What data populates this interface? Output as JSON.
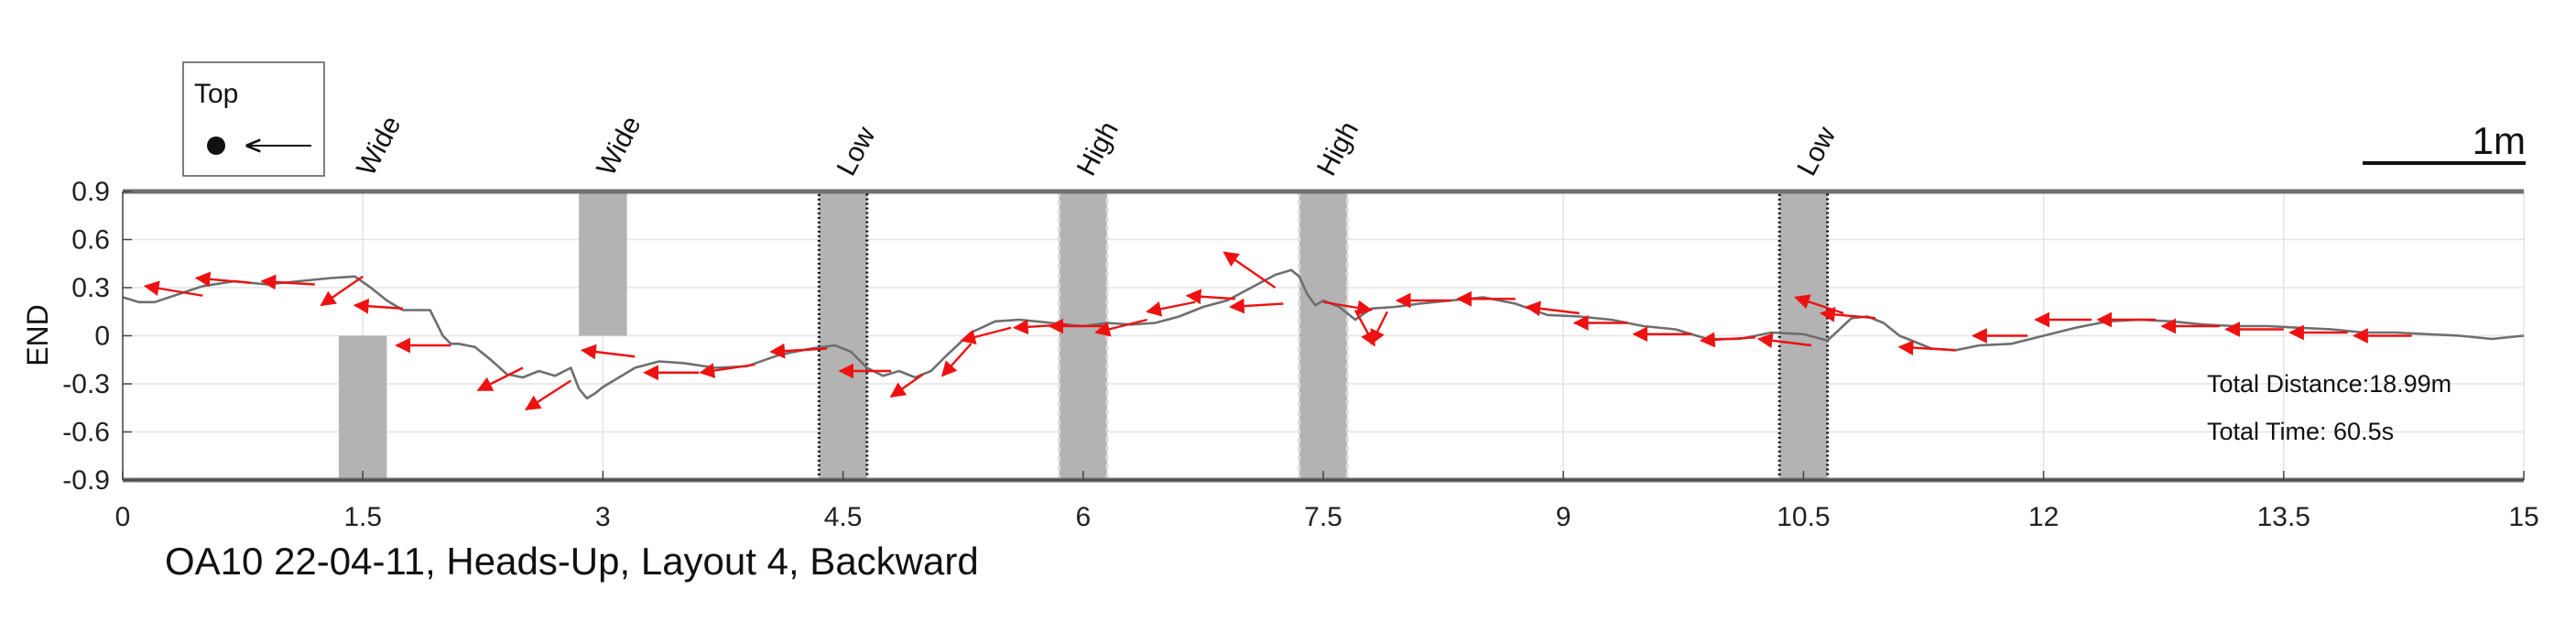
{
  "chart_data": {
    "type": "line",
    "title": "OA10 22-04-11, Heads-Up, Layout 4, Backward",
    "xlabel": "",
    "ylabel": "END",
    "xlim": [
      0,
      15
    ],
    "ylim": [
      -0.9,
      0.9
    ],
    "x_ticks": [
      "0",
      "1.5",
      "3",
      "4.5",
      "6",
      "7.5",
      "9",
      "10.5",
      "12",
      "13.5",
      "15"
    ],
    "y_ticks": [
      "0.9",
      "0.6",
      "0.3",
      "0",
      "-0.3",
      "-0.6",
      "-0.9"
    ],
    "x_tick_values": [
      0,
      1.5,
      3,
      4.5,
      6,
      7.5,
      9,
      10.5,
      12,
      13.5,
      15
    ],
    "y_tick_values": [
      0.9,
      0.6,
      0.3,
      0,
      -0.3,
      -0.6,
      -0.9
    ],
    "grid": true,
    "trajectory": {
      "color": "#6e6e6e",
      "x": [
        0,
        0.1,
        0.2,
        0.35,
        0.5,
        0.7,
        0.9,
        1.1,
        1.3,
        1.45,
        1.55,
        1.65,
        1.75,
        1.85,
        1.92,
        2.0,
        2.05,
        2.1,
        2.2,
        2.3,
        2.4,
        2.5,
        2.6,
        2.7,
        2.8,
        2.85,
        2.9,
        2.95,
        3.0,
        3.1,
        3.2,
        3.35,
        3.5,
        3.7,
        3.9,
        4.1,
        4.3,
        4.45,
        4.55,
        4.65,
        4.75,
        4.85,
        4.95,
        5.05,
        5.15,
        5.3,
        5.45,
        5.6,
        5.8,
        6.0,
        6.15,
        6.3,
        6.45,
        6.6,
        6.75,
        6.9,
        7.05,
        7.2,
        7.3,
        7.35,
        7.4,
        7.45,
        7.5,
        7.6,
        7.7,
        7.8,
        7.95,
        8.1,
        8.3,
        8.5,
        8.7,
        8.9,
        9.1,
        9.3,
        9.5,
        9.7,
        9.9,
        10.1,
        10.3,
        10.5,
        10.65,
        10.8,
        10.9,
        11.0,
        11.1,
        11.2,
        11.3,
        11.45,
        11.6,
        11.8,
        12.0,
        12.2,
        12.4,
        12.6,
        12.8,
        13.0,
        13.2,
        13.4,
        13.6,
        13.8,
        14.0,
        14.2,
        14.4,
        14.6,
        14.8,
        15.0
      ],
      "y": [
        0.24,
        0.21,
        0.21,
        0.26,
        0.31,
        0.34,
        0.32,
        0.34,
        0.36,
        0.37,
        0.3,
        0.22,
        0.16,
        0.16,
        0.16,
        0.0,
        -0.05,
        -0.05,
        -0.07,
        -0.15,
        -0.24,
        -0.26,
        -0.22,
        -0.25,
        -0.2,
        -0.33,
        -0.39,
        -0.36,
        -0.32,
        -0.26,
        -0.2,
        -0.16,
        -0.17,
        -0.2,
        -0.19,
        -0.12,
        -0.08,
        -0.06,
        -0.1,
        -0.2,
        -0.25,
        -0.22,
        -0.26,
        -0.22,
        -0.12,
        0.02,
        0.09,
        0.1,
        0.08,
        0.06,
        0.08,
        0.07,
        0.08,
        0.12,
        0.18,
        0.22,
        0.3,
        0.38,
        0.41,
        0.37,
        0.26,
        0.19,
        0.22,
        0.18,
        0.1,
        0.17,
        0.18,
        0.2,
        0.22,
        0.24,
        0.2,
        0.13,
        0.12,
        0.1,
        0.06,
        0.04,
        -0.02,
        -0.02,
        0.02,
        0.01,
        -0.03,
        0.11,
        0.12,
        0.08,
        0.0,
        -0.04,
        -0.08,
        -0.09,
        -0.06,
        -0.05,
        0.0,
        0.05,
        0.09,
        0.1,
        0.09,
        0.07,
        0.06,
        0.06,
        0.05,
        0.04,
        0.02,
        0.02,
        0.01,
        0.0,
        -0.02,
        0.0
      ]
    },
    "heading_arrows": {
      "color": "#ee1111",
      "x": [
        0.5,
        0.8,
        1.2,
        1.5,
        1.75,
        2.05,
        2.5,
        2.8,
        3.2,
        3.6,
        3.95,
        4.4,
        4.8,
        5.0,
        5.3,
        5.55,
        5.9,
        6.15,
        6.4,
        6.7,
        6.95,
        7.2,
        7.25,
        7.5,
        7.7,
        7.9,
        8.3,
        8.7,
        9.1,
        9.4,
        9.8,
        10.2,
        10.55,
        10.75,
        10.95,
        11.45,
        11.9,
        12.3,
        12.7,
        13.1,
        13.5,
        13.9,
        14.3
      ],
      "y": [
        0.25,
        0.33,
        0.32,
        0.37,
        0.17,
        -0.06,
        -0.2,
        -0.28,
        -0.13,
        -0.23,
        -0.18,
        -0.08,
        -0.22,
        -0.24,
        -0.05,
        0.05,
        0.07,
        0.06,
        0.1,
        0.21,
        0.23,
        0.3,
        0.2,
        0.21,
        0.16,
        0.15,
        0.22,
        0.23,
        0.14,
        0.08,
        0.01,
        -0.01,
        -0.06,
        0.14,
        0.11,
        -0.09,
        0.0,
        0.1,
        0.1,
        0.06,
        0.04,
        0.02,
        0.0
      ],
      "dx": [
        -0.36,
        -0.34,
        -0.33,
        -0.26,
        -0.3,
        -0.34,
        -0.28,
        -0.28,
        -0.33,
        -0.34,
        -0.34,
        -0.35,
        -0.32,
        -0.2,
        -0.18,
        -0.31,
        -0.33,
        -0.36,
        -0.32,
        -0.3,
        -0.3,
        -0.32,
        -0.33,
        0.3,
        0.12,
        -0.1,
        -0.34,
        -0.36,
        -0.33,
        -0.33,
        -0.36,
        -0.34,
        -0.33,
        -0.3,
        -0.34,
        -0.35,
        -0.34,
        -0.35,
        -0.36,
        -0.36,
        -0.36,
        -0.36,
        -0.36
      ],
      "dy": [
        0.06,
        0.03,
        0.02,
        -0.18,
        0.02,
        0.0,
        -0.14,
        -0.18,
        0.04,
        0.0,
        -0.05,
        -0.02,
        0.0,
        -0.14,
        -0.2,
        -0.08,
        -0.02,
        0.0,
        -0.08,
        -0.06,
        0.02,
        0.22,
        -0.02,
        -0.05,
        -0.22,
        -0.2,
        0.0,
        0.0,
        0.04,
        0.0,
        0.0,
        -0.02,
        0.04,
        0.1,
        0.03,
        0.02,
        0.0,
        0.0,
        0.0,
        0.0,
        0.0,
        0.0,
        0.0
      ]
    },
    "obstacles": [
      {
        "label": "Wide",
        "x0": 1.35,
        "x1": 1.65,
        "y0": -0.9,
        "y1": 0.0,
        "border": "none",
        "label_x": 1.5
      },
      {
        "label": "Wide",
        "x0": 2.85,
        "x1": 3.15,
        "y0": 0.0,
        "y1": 0.9,
        "border": "none",
        "label_x": 3.0
      },
      {
        "label": "Low",
        "x0": 4.35,
        "x1": 4.65,
        "y0": -0.9,
        "y1": 0.9,
        "border": "dotted-dark",
        "label_x": 4.5
      },
      {
        "label": "High",
        "x0": 5.85,
        "x1": 6.15,
        "y0": -0.9,
        "y1": 0.9,
        "border": "dashed-light",
        "label_x": 6.0
      },
      {
        "label": "High",
        "x0": 7.35,
        "x1": 7.65,
        "y0": -0.9,
        "y1": 0.9,
        "border": "dashed-light",
        "label_x": 7.5
      },
      {
        "label": "Low",
        "x0": 10.35,
        "x1": 10.65,
        "y0": -0.9,
        "y1": 0.9,
        "border": "dotted-dark",
        "label_x": 10.5
      }
    ],
    "colors": {
      "obstacle": "#b3b3b3",
      "boundary": "#707070",
      "grid": "#e3e3e3"
    },
    "inset": {
      "label": "Top",
      "icon": "dot-with-left-arrow"
    },
    "scale_bar": {
      "label": "1m",
      "length_m": 1
    },
    "annotations": {
      "total_distance": "Total Distance:18.99m",
      "total_time": "Total Time: 60.5s"
    }
  }
}
